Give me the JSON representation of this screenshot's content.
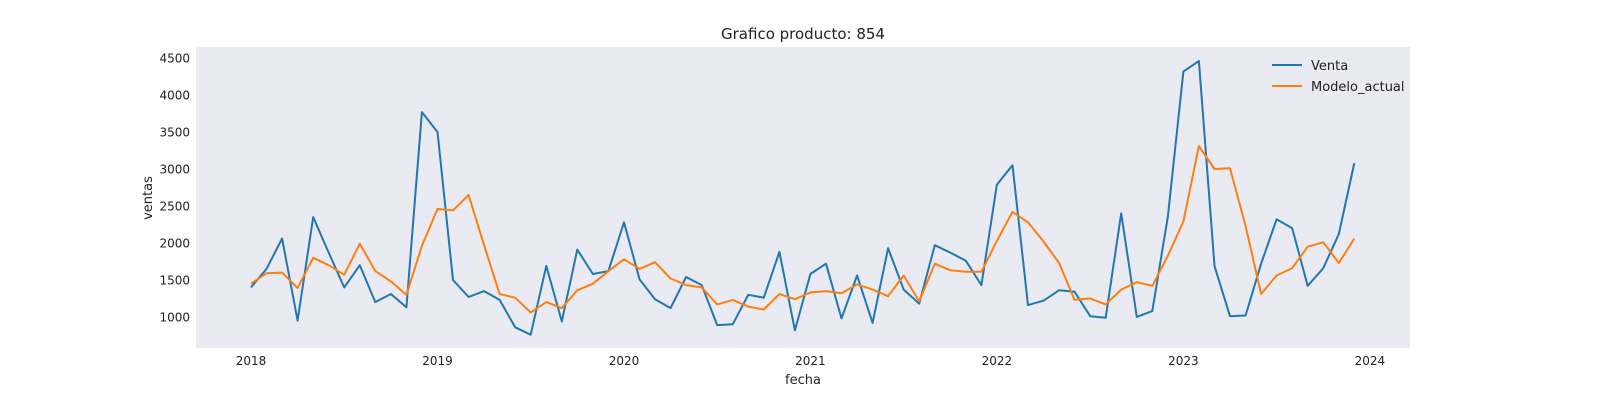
{
  "chart_data": {
    "type": "line",
    "title": "Grafico producto: 854",
    "xlabel": "fecha",
    "ylabel": "ventas",
    "x_start": "2018-01",
    "x_ticks": [
      "2018",
      "2019",
      "2020",
      "2021",
      "2022",
      "2023",
      "2024"
    ],
    "y_ticks": [
      1000,
      1500,
      2000,
      2500,
      3000,
      3500,
      4000,
      4500
    ],
    "ylim": [
      580,
      4650
    ],
    "grid": false,
    "legend": "top-right",
    "background": "#eaeaf2",
    "series": [
      {
        "name": "Venta",
        "color": "#1f77b4",
        "values": [
          1400,
          1650,
          2060,
          950,
          2350,
          1870,
          1400,
          1700,
          1200,
          1310,
          1130,
          3770,
          3500,
          1500,
          1270,
          1350,
          1230,
          860,
          760,
          1690,
          940,
          1910,
          1580,
          1620,
          2280,
          1510,
          1240,
          1120,
          1540,
          1430,
          890,
          900,
          1300,
          1260,
          1880,
          820,
          1580,
          1720,
          980,
          1560,
          920,
          1930,
          1370,
          1180,
          1970,
          1870,
          1760,
          1430,
          2790,
          3050,
          1160,
          1220,
          1360,
          1340,
          1010,
          990,
          2400,
          1000,
          1080,
          2360,
          4320,
          4460,
          1690,
          1010,
          1020,
          1720,
          2320,
          2200,
          1420,
          1660,
          2120,
          3080
        ]
      },
      {
        "name": "Modelo_actual",
        "color": "#ff7f0e",
        "values": [
          1450,
          1590,
          1600,
          1390,
          1800,
          1700,
          1570,
          1990,
          1620,
          1480,
          1300,
          1960,
          2460,
          2440,
          2650,
          1970,
          1310,
          1260,
          1060,
          1200,
          1120,
          1360,
          1450,
          1620,
          1780,
          1650,
          1740,
          1520,
          1430,
          1400,
          1170,
          1230,
          1140,
          1100,
          1310,
          1240,
          1330,
          1350,
          1320,
          1440,
          1370,
          1280,
          1560,
          1210,
          1720,
          1630,
          1610,
          1610,
          2030,
          2420,
          2280,
          2020,
          1730,
          1230,
          1250,
          1170,
          1370,
          1470,
          1420,
          1830,
          2290,
          3310,
          3000,
          3010,
          2230,
          1310,
          1560,
          1660,
          1950,
          2010,
          1730,
          2060
        ]
      }
    ]
  }
}
